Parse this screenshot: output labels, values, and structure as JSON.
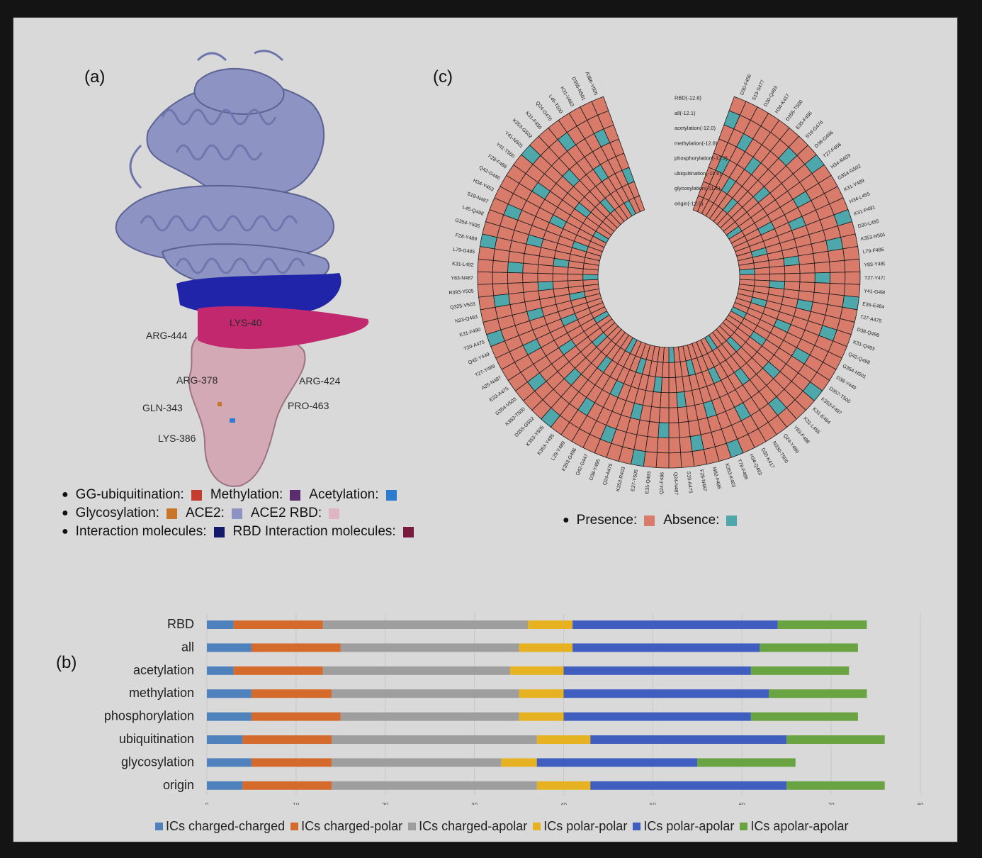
{
  "panels": {
    "a": "(a)",
    "b": "(b)",
    "c": "(c)"
  },
  "protein": {
    "labels": [
      "LYS-40",
      "ARG-444",
      "ARG-378",
      "ARG-424",
      "GLN-343",
      "PRO-463",
      "LYS-386"
    ],
    "colors": {
      "ace2": "#8d93c2",
      "ace2_dark": "#5b6193",
      "rbd": "#d2a9b5",
      "ace2_interaction": "#1f24a8",
      "rbd_interaction": "#c2286e"
    }
  },
  "legend_a": [
    {
      "items": [
        {
          "label": "GG-ubiquitination:",
          "color": "#c43d2f"
        },
        {
          "label": "Methylation:",
          "color": "#5b2d6e"
        },
        {
          "label": "Acetylation:",
          "color": "#2b7bd0"
        }
      ]
    },
    {
      "items": [
        {
          "label": "Glycosylation:",
          "color": "#c8762a"
        },
        {
          "label": "ACE2:",
          "color": "#8d93c2"
        },
        {
          "label": "ACE2  RBD:",
          "color": "#e0b5c3"
        }
      ]
    },
    {
      "items": [
        {
          "label": "Interaction molecules:",
          "color": "#141a6b"
        },
        {
          "label": "RBD Interaction molecules:",
          "color": "#7a1a3e"
        }
      ]
    }
  ],
  "legend_c": [
    {
      "label": "Presence:",
      "color": "#d97b6a"
    },
    {
      "label": "Absence:",
      "color": "#4ea7ab"
    }
  ],
  "circular": {
    "ring_labels": [
      "RBD(-12.8)",
      "all(-12.1)",
      "acetylation(-12.0)",
      "methylation(-12.8)",
      "phosphorylation(-12.2)",
      "ubiquitination(-11.6)",
      "glycosylation(-11.6)",
      "origin(-12.5)"
    ],
    "pairs": [
      "D30-F456",
      "S19-S477",
      "D30-Q493",
      "H34-K417",
      "D355-T500",
      "E35-F456",
      "S19-G476",
      "D38-G496",
      "T27-F456",
      "H34-R403",
      "G354-G502",
      "K31-Y489",
      "H34-L455",
      "K31-P491",
      "D30-L455",
      "K353-N501",
      "L79-F486",
      "Y83-Y489",
      "T27-Y473",
      "Y41-G498",
      "E35-E484",
      "T27-A475",
      "D38-Q498",
      "K31-Q493",
      "Q42-Q498",
      "G354-N501",
      "D38-Y449",
      "D357-T500",
      "K353-F497",
      "K31-E484",
      "K31-L455",
      "Y83-F486",
      "Q24-Y489",
      "N330-T500",
      "D30-K417",
      "H34-Q493",
      "T78-F486",
      "K353-K403",
      "M82-F486",
      "F28-N487",
      "S19-A475",
      "Q24-N487",
      "Q24-F486",
      "E35-Q493",
      "E37-Y505",
      "K353-R403",
      "Q24-A475",
      "D38-Y495",
      "Q42-G447",
      "K353-G496",
      "L29-Y489",
      "K353-Y495",
      "K353-Y505",
      "D355-G502",
      "K353-T500",
      "G354-V503",
      "E23-A475",
      "A25-N487",
      "T27-Y489",
      "Q42-Y449",
      "T20-A475",
      "K31-F490",
      "N33-Q493",
      "Q325-V503",
      "R393-Y505",
      "Y83-N487",
      "K31-L492",
      "L79-G485",
      "F28-Y489",
      "G354-Y505",
      "L45-Q498",
      "S19-N487",
      "H34-Y453",
      "Q42-G446",
      "F28-F486",
      "Y41-T500",
      "Y41-N501",
      "K353-G502",
      "K31-F456",
      "Q24-G476",
      "L45-T500",
      "K31-V483",
      "D355-N501",
      "A386-Y505"
    ],
    "absence": [
      [
        0,
        1
      ],
      [
        1,
        4
      ],
      [
        2,
        2
      ],
      [
        3,
        5
      ],
      [
        4,
        3
      ],
      [
        5,
        6
      ],
      [
        6,
        1
      ],
      [
        7,
        4
      ],
      [
        8,
        0
      ],
      [
        9,
        7
      ],
      [
        10,
        2
      ],
      [
        11,
        5
      ],
      [
        12,
        3
      ],
      [
        13,
        0
      ],
      [
        14,
        6
      ],
      [
        15,
        1
      ],
      [
        16,
        4
      ],
      [
        17,
        7
      ],
      [
        18,
        2
      ],
      [
        19,
        5
      ],
      [
        20,
        0
      ],
      [
        21,
        3
      ],
      [
        22,
        6
      ],
      [
        23,
        1
      ],
      [
        24,
        4
      ],
      [
        25,
        7
      ],
      [
        26,
        2
      ],
      [
        27,
        5
      ],
      [
        28,
        0
      ],
      [
        29,
        3
      ],
      [
        30,
        6
      ],
      [
        31,
        1
      ],
      [
        32,
        4
      ],
      [
        33,
        7
      ],
      [
        34,
        2
      ],
      [
        35,
        5
      ],
      [
        36,
        0
      ],
      [
        37,
        3
      ],
      [
        38,
        6
      ],
      [
        39,
        1
      ],
      [
        40,
        4
      ],
      [
        41,
        7
      ],
      [
        42,
        2
      ],
      [
        43,
        5
      ],
      [
        44,
        0
      ],
      [
        45,
        3
      ],
      [
        46,
        6
      ],
      [
        47,
        1
      ],
      [
        48,
        4
      ],
      [
        49,
        7
      ],
      [
        50,
        2
      ],
      [
        51,
        5
      ],
      [
        52,
        0
      ],
      [
        53,
        3
      ],
      [
        54,
        6
      ],
      [
        55,
        1
      ],
      [
        56,
        4
      ],
      [
        57,
        7
      ],
      [
        58,
        2
      ],
      [
        59,
        5
      ],
      [
        60,
        0
      ],
      [
        61,
        3
      ],
      [
        62,
        6
      ],
      [
        63,
        1
      ],
      [
        64,
        4
      ],
      [
        65,
        7
      ],
      [
        66,
        2
      ],
      [
        67,
        5
      ],
      [
        68,
        0
      ],
      [
        69,
        3
      ],
      [
        70,
        6
      ],
      [
        71,
        1
      ],
      [
        72,
        4
      ],
      [
        73,
        7
      ],
      [
        74,
        2
      ],
      [
        75,
        5
      ],
      [
        76,
        0
      ],
      [
        77,
        3
      ],
      [
        78,
        6
      ],
      [
        79,
        1
      ],
      [
        80,
        4
      ],
      [
        81,
        7
      ],
      [
        82,
        2
      ],
      [
        83,
        5
      ]
    ]
  },
  "chart_data": {
    "type": "bar",
    "orientation": "horizontal",
    "stacked": true,
    "categories": [
      "RBD",
      "all",
      "acetylation",
      "methylation",
      "phosphorylation",
      "ubiquitination",
      "glycosylation",
      "origin"
    ],
    "series": [
      {
        "name": "ICs charged-charged",
        "color": "#4f81bd",
        "values": [
          3,
          5,
          3,
          5,
          5,
          4,
          5,
          4
        ]
      },
      {
        "name": "ICs charged-polar",
        "color": "#d46a2b",
        "values": [
          10,
          10,
          10,
          9,
          10,
          10,
          9,
          10
        ]
      },
      {
        "name": "ICs charged-apolar",
        "color": "#9e9e9e",
        "values": [
          23,
          20,
          21,
          21,
          20,
          23,
          19,
          23
        ]
      },
      {
        "name": "ICs polar-polar",
        "color": "#e6b222",
        "values": [
          5,
          6,
          6,
          5,
          5,
          6,
          4,
          6
        ]
      },
      {
        "name": "ICs polar-apolar",
        "color": "#3f5ec0",
        "values": [
          23,
          21,
          21,
          23,
          21,
          22,
          18,
          22
        ]
      },
      {
        "name": "ICs apolar-apolar",
        "color": "#6aa342",
        "values": [
          10,
          11,
          11,
          11,
          12,
          11,
          11,
          11
        ]
      }
    ],
    "xticks": [
      "0",
      "10",
      "20",
      "30",
      "40",
      "50",
      "60",
      "70",
      "80"
    ],
    "xlim": [
      0,
      80
    ]
  }
}
